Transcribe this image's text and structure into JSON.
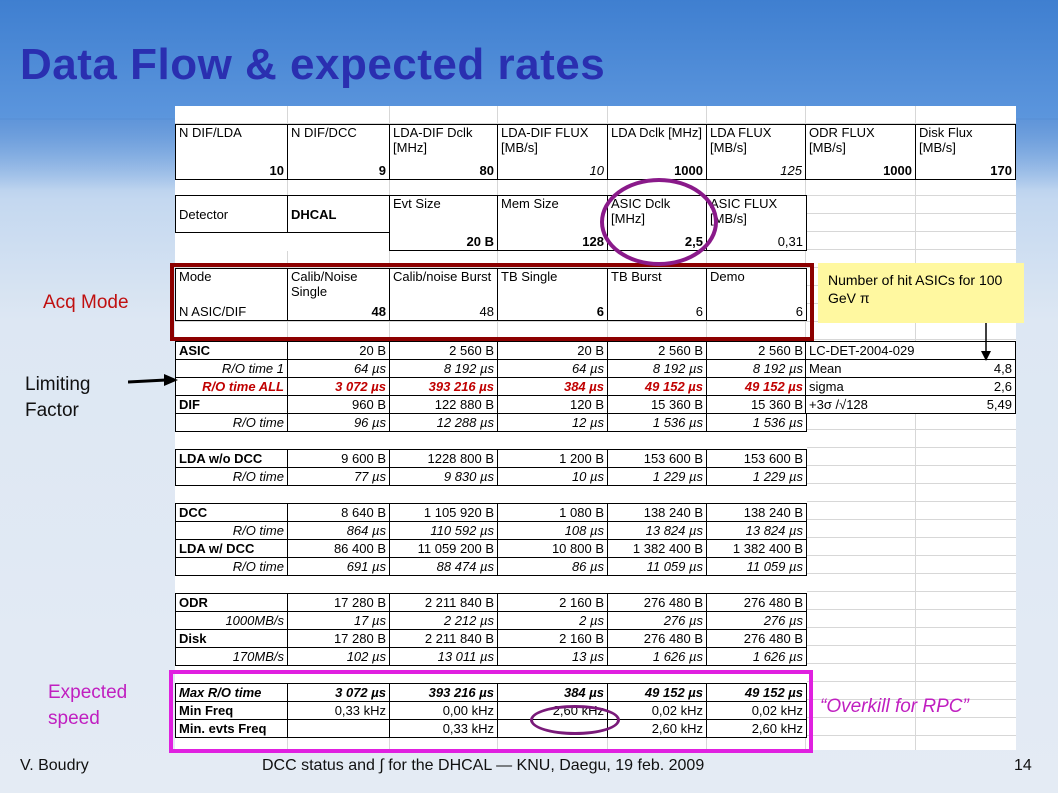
{
  "title": "Data Flow & expected rates",
  "top_table": {
    "headers": [
      "N DIF/LDA",
      "N DIF/DCC",
      "LDA-DIF Dclk [MHz]",
      "LDA-DIF FLUX [MB/s]",
      "LDA Dclk [MHz]",
      "LDA FLUX [MB/s]",
      "ODR FLUX [MB/s]",
      "Disk Flux [MB/s]"
    ],
    "values": [
      "10",
      "9",
      "80",
      "10",
      "1000",
      "125",
      "1000",
      "170"
    ]
  },
  "detector_table": {
    "detector_label": "Detector",
    "detector_value": "DHCAL",
    "headers": [
      "Evt Size",
      "Mem Size",
      "ASIC Dclk [MHz]",
      "ASIC FLUX [MB/s]"
    ],
    "values": [
      "20 B",
      "128",
      "2,5",
      "0,31"
    ]
  },
  "mode_table": {
    "mode_label": "Mode",
    "modes": [
      "Calib/Noise Single",
      "Calib/noise Burst",
      "TB Single",
      "TB Burst",
      "Demo"
    ],
    "nasic_label": "N ASIC/DIF",
    "nasic_values": [
      "48",
      "48",
      "6",
      "6",
      "6"
    ]
  },
  "main_rows": [
    {
      "label": "ASIC",
      "style": "rh",
      "values": [
        "20 B",
        "2 560 B",
        "20 B",
        "2 560 B",
        "2 560 B"
      ]
    },
    {
      "label": "R/O time 1",
      "style": "ri",
      "values": [
        "64 µs",
        "8 192 µs",
        "64 µs",
        "8 192 µs",
        "8 192 µs"
      ]
    },
    {
      "label": "R/O time ALL",
      "style": "red",
      "values": [
        "3 072 µs",
        "393 216 µs",
        "384 µs",
        "49 152 µs",
        "49 152 µs"
      ]
    },
    {
      "label": "DIF",
      "style": "rh",
      "values": [
        "960 B",
        "122 880 B",
        "120 B",
        "15 360 B",
        "15 360 B"
      ]
    },
    {
      "label": "R/O time",
      "style": "ri",
      "values": [
        "96 µs",
        "12 288 µs",
        "12 µs",
        "1 536 µs",
        "1 536 µs"
      ]
    },
    {
      "label": "",
      "style": "blank",
      "values": [
        "",
        "",
        "",
        "",
        ""
      ]
    },
    {
      "label": "LDA w/o DCC",
      "style": "rh",
      "values": [
        "9 600 B",
        "1228 800 B",
        "1 200 B",
        "153 600 B",
        "153 600 B"
      ]
    },
    {
      "label": "R/O time",
      "style": "ri",
      "values": [
        "77 µs",
        "9 830 µs",
        "10 µs",
        "1 229 µs",
        "1 229 µs"
      ]
    },
    {
      "label": "",
      "style": "blank",
      "values": [
        "",
        "",
        "",
        "",
        ""
      ]
    },
    {
      "label": "DCC",
      "style": "rh",
      "values": [
        "8 640 B",
        "1 105 920 B",
        "1 080 B",
        "138 240 B",
        "138 240 B"
      ]
    },
    {
      "label": "R/O time",
      "style": "ri",
      "values": [
        "864 µs",
        "110 592 µs",
        "108 µs",
        "13 824 µs",
        "13 824 µs"
      ]
    },
    {
      "label": "LDA w/ DCC",
      "style": "rh",
      "values": [
        "86 400 B",
        "11 059 200 B",
        "10 800 B",
        "1 382 400 B",
        "1 382 400 B"
      ]
    },
    {
      "label": "R/O time",
      "style": "ri",
      "values": [
        "691 µs",
        "88 474 µs",
        "86 µs",
        "11 059 µs",
        "11 059 µs"
      ]
    },
    {
      "label": "",
      "style": "blank",
      "values": [
        "",
        "",
        "",
        "",
        ""
      ]
    },
    {
      "label": "ODR",
      "style": "rh",
      "values": [
        "17 280 B",
        "2 211 840 B",
        "2 160 B",
        "276 480 B",
        "276 480 B"
      ]
    },
    {
      "label": "1000MB/s",
      "style": "ri",
      "values": [
        "17 µs",
        "2 212 µs",
        "2 µs",
        "276 µs",
        "276 µs"
      ]
    },
    {
      "label": "Disk",
      "style": "rh",
      "values": [
        "17 280 B",
        "2 211 840 B",
        "2 160 B",
        "276 480 B",
        "276 480 B"
      ]
    },
    {
      "label": "170MB/s",
      "style": "ri",
      "values": [
        "102 µs",
        "13 011 µs",
        "13 µs",
        "1 626 µs",
        "1 626 µs"
      ]
    },
    {
      "label": "",
      "style": "blank",
      "values": [
        "",
        "",
        "",
        "",
        ""
      ]
    },
    {
      "label": "Max R/O time",
      "style": "max",
      "values": [
        "3 072 µs",
        "393 216 µs",
        "384 µs",
        "49 152 µs",
        "49 152 µs"
      ]
    },
    {
      "label": "Min Freq",
      "style": "minf",
      "values": [
        "0,33 kHz",
        "0,00 kHz",
        "2,60 kHz",
        "0,02 kHz",
        "0,02 kHz"
      ]
    },
    {
      "label": "Min. evts Freq",
      "style": "minf",
      "values": [
        "",
        "0,33 kHz",
        "",
        "2,60 kHz",
        "2,60 kHz"
      ]
    }
  ],
  "stats_table": [
    {
      "label": "LC-DET-2004-029",
      "value": ""
    },
    {
      "label": "Mean",
      "value": "4,8"
    },
    {
      "label": "sigma",
      "value": "2,6"
    },
    {
      "label": "+3σ /√128",
      "value": "5,49"
    }
  ],
  "labels": {
    "acq_mode": "Acq Mode",
    "limiting_factor": "Limiting Factor",
    "expected_speed": "Expected speed",
    "note": "Number of hit ASICs for 100 GeV π",
    "overkill": "“Overkill for RPC”"
  },
  "footer": {
    "author": "V. Boudry",
    "center": "DCC status and ∫ for the DHCAL  — KNU, Daegu, 19 feb. 2009",
    "page": "14"
  },
  "colors": {
    "title": "#2a2fb0",
    "red_box": "#8c0000",
    "magenta": "#e020e0",
    "purple": "#8a1a8a",
    "red_text": "#c00000",
    "note_bg": "#fff8a0"
  }
}
